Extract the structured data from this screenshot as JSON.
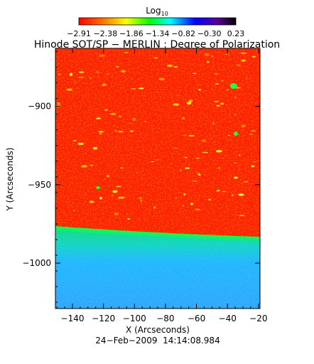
{
  "colorbar": {
    "label_main": "Log",
    "label_sub": "10",
    "tick_labels": [
      "−2.91",
      "−2.38",
      "−1.86",
      "−1.34",
      "−0.82",
      "−0.30",
      "0.23"
    ],
    "tick_values": [
      -2.91,
      -2.38,
      -1.86,
      -1.34,
      -0.82,
      -0.3,
      0.23
    ],
    "range": [
      -2.91,
      0.23
    ],
    "colormap": "rainbow",
    "stops": [
      "#ff0000",
      "#ff8800",
      "#ffff00",
      "#00ff00",
      "#00ffff",
      "#0000ff",
      "#4b0082",
      "#000000"
    ]
  },
  "title": "Hinode SOT/SP − MERLIN : Degree of Polarization",
  "axes": {
    "x_label": "X (Arcseconds)",
    "y_label": "Y (Arcseconds)",
    "x_ticks": [
      {
        "value": -140,
        "label": "−140"
      },
      {
        "value": -120,
        "label": "−120"
      },
      {
        "value": -100,
        "label": "−100"
      },
      {
        "value": -80,
        "label": "−80"
      },
      {
        "value": -60,
        "label": "−60"
      },
      {
        "value": -40,
        "label": "−40"
      },
      {
        "value": -20,
        "label": "−20"
      }
    ],
    "y_ticks": [
      {
        "value": -900,
        "label": "−900"
      },
      {
        "value": -950,
        "label": "−950"
      },
      {
        "value": -1000,
        "label": "−1000"
      }
    ],
    "xlim": [
      -151,
      -19
    ],
    "ylim": [
      -1029,
      -863
    ]
  },
  "image": {
    "description_colors": {
      "disk": "#ff2000",
      "limb": "#20ff30",
      "off_limb_upper": "#10e090",
      "off_limb_lower": "#20a8ff"
    },
    "limb_y_left": -975,
    "limb_y_right": -982
  },
  "timestamp": "24−Feb−2009  14:14:08.984"
}
